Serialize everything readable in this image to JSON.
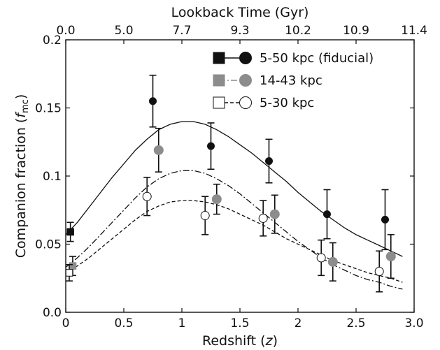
{
  "chart_data": {
    "type": "scatter",
    "xlabel": "Redshift (z)",
    "xlabel_main": "Redshift (",
    "xlabel_var": "z",
    "xlabel_end": ")",
    "ylabel": "Companion fraction (f_mc)",
    "ylabel_main": "Companion fraction (",
    "ylabel_var": "f",
    "ylabel_sub": "mc",
    "ylabel_end": ")",
    "top_xlabel": "Lookback Time (Gyr)",
    "xlim": [
      0.0,
      3.0
    ],
    "ylim": [
      0.0,
      0.2
    ],
    "x_ticks": [
      0.0,
      0.5,
      1.0,
      1.5,
      2.0,
      2.5,
      3.0
    ],
    "x_tick_labels": [
      "0",
      "0.5",
      "1",
      "1.5",
      "2",
      "2.5",
      "3.0"
    ],
    "y_ticks": [
      0.0,
      0.05,
      0.1,
      0.15,
      0.2
    ],
    "y_tick_labels": [
      "0.0",
      "0.05",
      "0.1",
      "0.15",
      "0.2"
    ],
    "top_ticks": [
      0.0,
      0.35,
      0.7,
      1.05,
      1.4,
      1.75,
      2.1,
      2.45,
      2.85
    ],
    "top_tick_labels": [
      "0.0",
      "5.0",
      "7.7",
      "9.3",
      "10.2",
      "10.9",
      "11.4"
    ],
    "top_tick_label_positions": [
      0.0,
      0.5,
      1.0,
      1.5,
      2.0,
      2.5,
      3.0
    ],
    "legend_position": "top-right",
    "grid": false,
    "series": [
      {
        "name": "5-50 kpc (fiducial)",
        "style": "filled-black",
        "color": "#111111",
        "line": "solid",
        "local_point": {
          "x": 0.04,
          "y": 0.059,
          "err": 0.007
        },
        "points": [
          {
            "x": 0.75,
            "y": 0.155,
            "err": 0.019
          },
          {
            "x": 1.25,
            "y": 0.122,
            "err": 0.017
          },
          {
            "x": 1.75,
            "y": 0.111,
            "err": 0.016
          },
          {
            "x": 2.25,
            "y": 0.072,
            "err": 0.018
          },
          {
            "x": 2.75,
            "y": 0.068,
            "err": 0.022
          }
        ],
        "curve": [
          {
            "x": 0.0,
            "y": 0.057
          },
          {
            "x": 0.1,
            "y": 0.066
          },
          {
            "x": 0.2,
            "y": 0.077
          },
          {
            "x": 0.3,
            "y": 0.088
          },
          {
            "x": 0.4,
            "y": 0.099
          },
          {
            "x": 0.5,
            "y": 0.109
          },
          {
            "x": 0.6,
            "y": 0.119
          },
          {
            "x": 0.7,
            "y": 0.127
          },
          {
            "x": 0.8,
            "y": 0.134
          },
          {
            "x": 0.9,
            "y": 0.138
          },
          {
            "x": 1.0,
            "y": 0.14
          },
          {
            "x": 1.1,
            "y": 0.14
          },
          {
            "x": 1.2,
            "y": 0.138
          },
          {
            "x": 1.3,
            "y": 0.134
          },
          {
            "x": 1.4,
            "y": 0.129
          },
          {
            "x": 1.5,
            "y": 0.123
          },
          {
            "x": 1.6,
            "y": 0.117
          },
          {
            "x": 1.7,
            "y": 0.11
          },
          {
            "x": 1.8,
            "y": 0.103
          },
          {
            "x": 1.9,
            "y": 0.096
          },
          {
            "x": 2.0,
            "y": 0.088
          },
          {
            "x": 2.1,
            "y": 0.081
          },
          {
            "x": 2.2,
            "y": 0.074
          },
          {
            "x": 2.3,
            "y": 0.068
          },
          {
            "x": 2.4,
            "y": 0.062
          },
          {
            "x": 2.5,
            "y": 0.057
          },
          {
            "x": 2.6,
            "y": 0.053
          },
          {
            "x": 2.7,
            "y": 0.049
          },
          {
            "x": 2.8,
            "y": 0.045
          },
          {
            "x": 2.9,
            "y": 0.041
          }
        ]
      },
      {
        "name": "14-43 kpc",
        "style": "filled-gray",
        "color": "#8c8c8c",
        "line": "dashdot",
        "local_point": {
          "x": 0.06,
          "y": 0.034,
          "err": 0.007
        },
        "points": [
          {
            "x": 0.8,
            "y": 0.119,
            "err": 0.016
          },
          {
            "x": 1.3,
            "y": 0.083,
            "err": 0.011
          },
          {
            "x": 1.8,
            "y": 0.072,
            "err": 0.014
          },
          {
            "x": 2.3,
            "y": 0.037,
            "err": 0.014
          },
          {
            "x": 2.8,
            "y": 0.041,
            "err": 0.016
          }
        ],
        "curve": [
          {
            "x": 0.0,
            "y": 0.033
          },
          {
            "x": 0.1,
            "y": 0.04
          },
          {
            "x": 0.2,
            "y": 0.048
          },
          {
            "x": 0.3,
            "y": 0.057
          },
          {
            "x": 0.4,
            "y": 0.066
          },
          {
            "x": 0.5,
            "y": 0.075
          },
          {
            "x": 0.6,
            "y": 0.084
          },
          {
            "x": 0.7,
            "y": 0.092
          },
          {
            "x": 0.8,
            "y": 0.098
          },
          {
            "x": 0.9,
            "y": 0.102
          },
          {
            "x": 1.0,
            "y": 0.104
          },
          {
            "x": 1.1,
            "y": 0.104
          },
          {
            "x": 1.2,
            "y": 0.102
          },
          {
            "x": 1.3,
            "y": 0.098
          },
          {
            "x": 1.4,
            "y": 0.093
          },
          {
            "x": 1.5,
            "y": 0.087
          },
          {
            "x": 1.6,
            "y": 0.08
          },
          {
            "x": 1.7,
            "y": 0.073
          },
          {
            "x": 1.8,
            "y": 0.066
          },
          {
            "x": 1.9,
            "y": 0.059
          },
          {
            "x": 2.0,
            "y": 0.052
          },
          {
            "x": 2.1,
            "y": 0.046
          },
          {
            "x": 2.2,
            "y": 0.04
          },
          {
            "x": 2.3,
            "y": 0.035
          },
          {
            "x": 2.4,
            "y": 0.031
          },
          {
            "x": 2.5,
            "y": 0.027
          },
          {
            "x": 2.6,
            "y": 0.024
          },
          {
            "x": 2.7,
            "y": 0.022
          },
          {
            "x": 2.8,
            "y": 0.019
          },
          {
            "x": 2.9,
            "y": 0.017
          }
        ]
      },
      {
        "name": "5-30 kpc",
        "style": "open",
        "color": "#111111",
        "line": "dashed",
        "local_point": {
          "x": 0.03,
          "y": 0.029,
          "err": 0.006
        },
        "points": [
          {
            "x": 0.7,
            "y": 0.085,
            "err": 0.014
          },
          {
            "x": 1.2,
            "y": 0.071,
            "err": 0.014
          },
          {
            "x": 1.7,
            "y": 0.069,
            "err": 0.013
          },
          {
            "x": 2.2,
            "y": 0.04,
            "err": 0.013
          },
          {
            "x": 2.7,
            "y": 0.03,
            "err": 0.015
          }
        ],
        "curve": [
          {
            "x": 0.0,
            "y": 0.029
          },
          {
            "x": 0.1,
            "y": 0.034
          },
          {
            "x": 0.2,
            "y": 0.04
          },
          {
            "x": 0.3,
            "y": 0.047
          },
          {
            "x": 0.4,
            "y": 0.054
          },
          {
            "x": 0.5,
            "y": 0.061
          },
          {
            "x": 0.6,
            "y": 0.068
          },
          {
            "x": 0.7,
            "y": 0.074
          },
          {
            "x": 0.8,
            "y": 0.078
          },
          {
            "x": 0.9,
            "y": 0.081
          },
          {
            "x": 1.0,
            "y": 0.082
          },
          {
            "x": 1.1,
            "y": 0.082
          },
          {
            "x": 1.2,
            "y": 0.081
          },
          {
            "x": 1.3,
            "y": 0.079
          },
          {
            "x": 1.4,
            "y": 0.076
          },
          {
            "x": 1.5,
            "y": 0.072
          },
          {
            "x": 1.6,
            "y": 0.068
          },
          {
            "x": 1.7,
            "y": 0.064
          },
          {
            "x": 1.8,
            "y": 0.059
          },
          {
            "x": 1.9,
            "y": 0.054
          },
          {
            "x": 2.0,
            "y": 0.05
          },
          {
            "x": 2.1,
            "y": 0.046
          },
          {
            "x": 2.2,
            "y": 0.042
          },
          {
            "x": 2.3,
            "y": 0.038
          },
          {
            "x": 2.4,
            "y": 0.035
          },
          {
            "x": 2.5,
            "y": 0.032
          },
          {
            "x": 2.6,
            "y": 0.029
          },
          {
            "x": 2.7,
            "y": 0.027
          },
          {
            "x": 2.8,
            "y": 0.025
          },
          {
            "x": 2.9,
            "y": 0.022
          }
        ]
      }
    ]
  }
}
